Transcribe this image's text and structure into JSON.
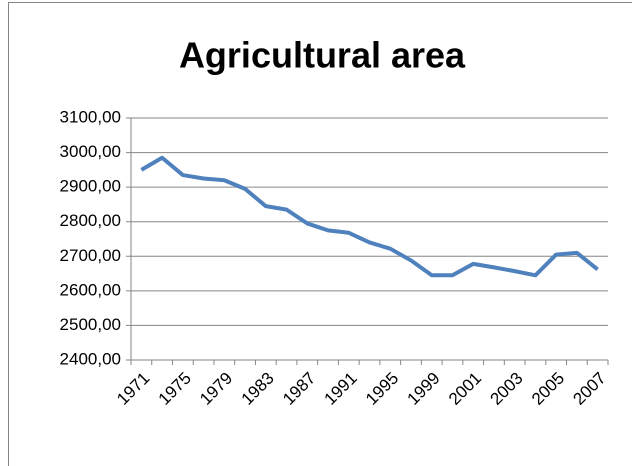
{
  "chart_data": {
    "type": "line",
    "title": "Agricultural area",
    "categories": [
      "1971",
      null,
      "1975",
      null,
      "1979",
      null,
      "1983",
      null,
      "1987",
      null,
      "1991",
      null,
      "1995",
      null,
      "1999",
      null,
      "2001",
      null,
      "2003",
      null,
      "2005",
      null,
      "2007"
    ],
    "series": [
      {
        "name": "Agricultural area",
        "color": "#4f81bd",
        "values": [
          2950,
          2985,
          2935,
          2925,
          2920,
          2895,
          2845,
          2835,
          2795,
          2775,
          2768,
          2740,
          2722,
          2688,
          2645,
          2645,
          2678,
          2668,
          2657,
          2645,
          2705,
          2710,
          2662
        ]
      }
    ],
    "ylim": [
      2400,
      3100
    ],
    "yticks": [
      {
        "value": 2400,
        "label": "2400,00"
      },
      {
        "value": 2500,
        "label": "2500,00"
      },
      {
        "value": 2600,
        "label": "2600,00"
      },
      {
        "value": 2700,
        "label": "2700,00"
      },
      {
        "value": 2800,
        "label": "2800,00"
      },
      {
        "value": 2900,
        "label": "2900,00"
      },
      {
        "value": 3000,
        "label": "3000,00"
      },
      {
        "value": 3100,
        "label": "3100,00"
      }
    ],
    "grid": true
  }
}
